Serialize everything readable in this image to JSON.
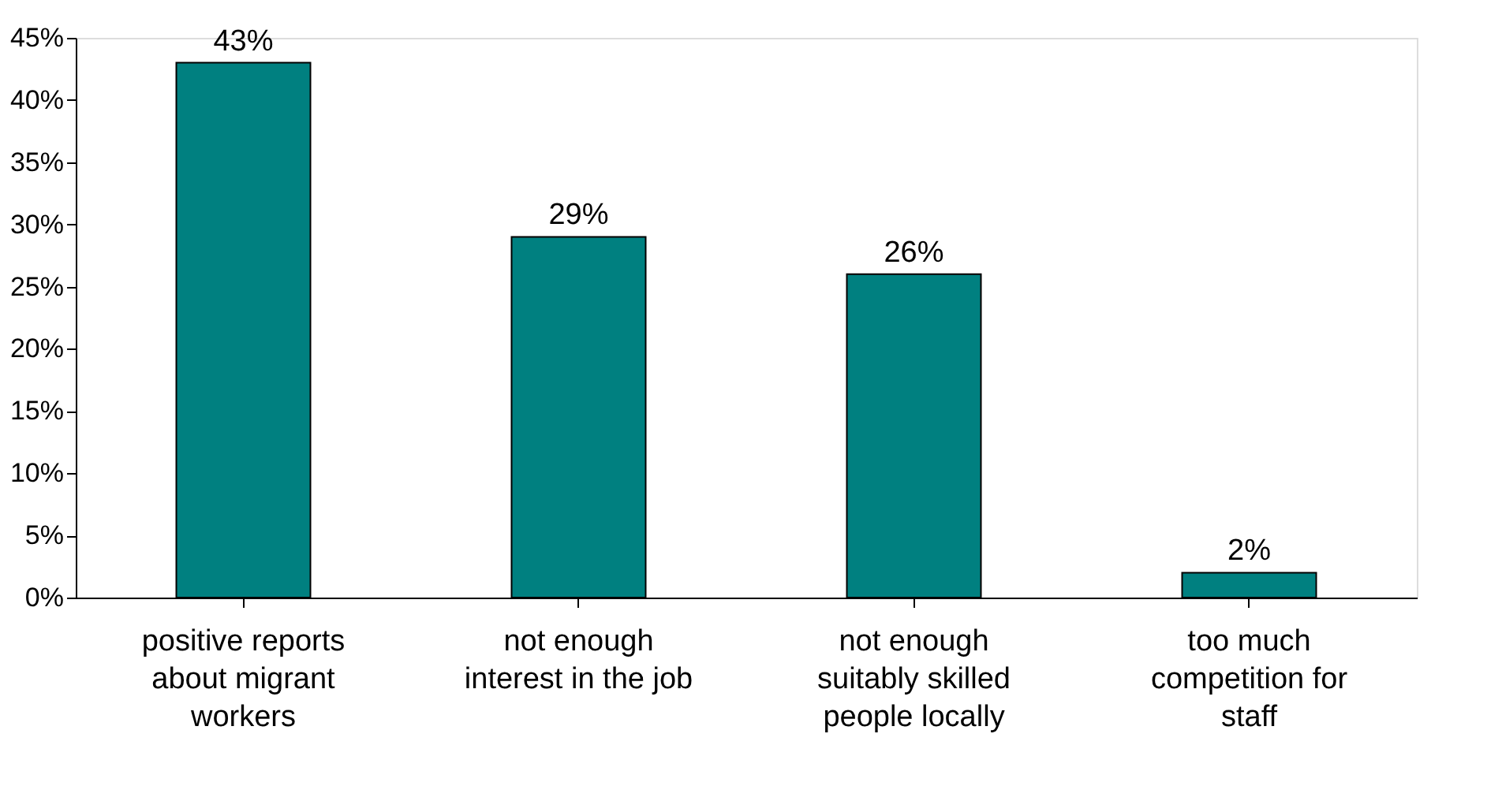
{
  "chart_data": {
    "type": "bar",
    "categories": [
      "positive reports\nabout migrant\nworkers",
      "not enough\ninterest in the job",
      "not enough\nsuitably skilled\npeople locally",
      "too much\ncompetition for\nstaff"
    ],
    "values": [
      43,
      29,
      26,
      2
    ],
    "value_labels": [
      "43%",
      "29%",
      "26%",
      "2%"
    ],
    "color": "#008080",
    "ylim": [
      0,
      45
    ],
    "yticks": [
      {
        "value": 0,
        "label": "0%"
      },
      {
        "value": 5,
        "label": "5%"
      },
      {
        "value": 10,
        "label": "10%"
      },
      {
        "value": 15,
        "label": "15%"
      },
      {
        "value": 20,
        "label": "20%"
      },
      {
        "value": 25,
        "label": "25%"
      },
      {
        "value": 30,
        "label": "30%"
      },
      {
        "value": 35,
        "label": "35%"
      },
      {
        "value": 40,
        "label": "40%"
      },
      {
        "value": 45,
        "label": "45%"
      }
    ],
    "grid": false
  }
}
